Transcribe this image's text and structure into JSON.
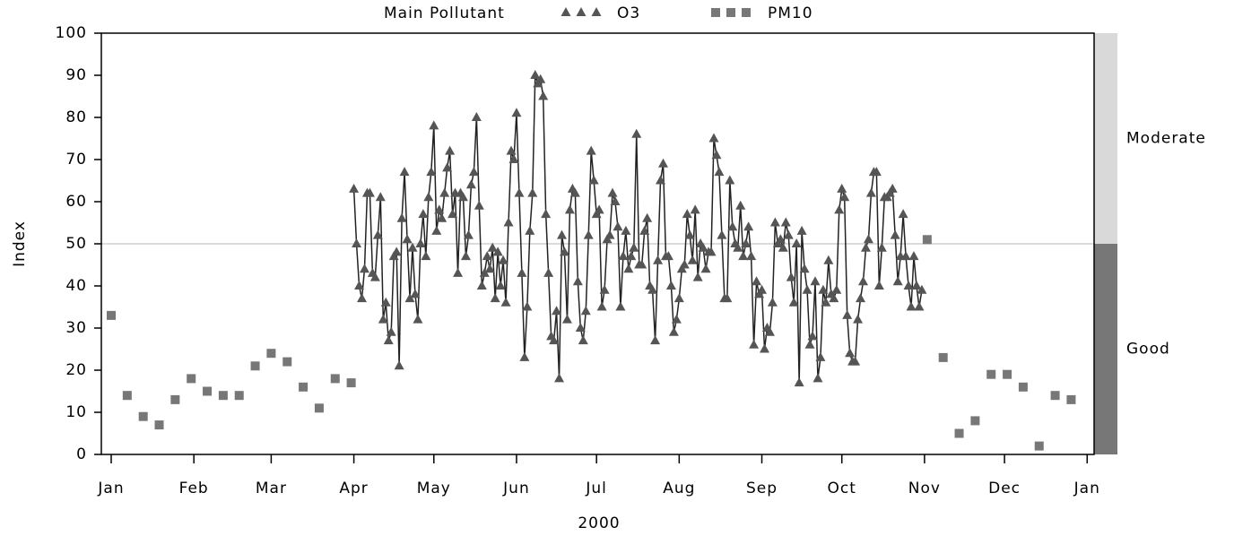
{
  "chart_data": {
    "type": "line",
    "title": "Main Pollutant",
    "xlabel": "2000",
    "ylabel": "Index",
    "xlim": [
      -3.7,
      368.6
    ],
    "ylim": [
      0,
      100
    ],
    "xticks": [
      {
        "value": 0,
        "label": "Jan"
      },
      {
        "value": 31,
        "label": "Feb"
      },
      {
        "value": 60,
        "label": "Mar"
      },
      {
        "value": 91,
        "label": "Apr"
      },
      {
        "value": 121,
        "label": "May"
      },
      {
        "value": 152,
        "label": "Jun"
      },
      {
        "value": 182,
        "label": "Jul"
      },
      {
        "value": 213,
        "label": "Aug"
      },
      {
        "value": 244,
        "label": "Sep"
      },
      {
        "value": 274,
        "label": "Oct"
      },
      {
        "value": 305,
        "label": "Nov"
      },
      {
        "value": 335,
        "label": "Dec"
      },
      {
        "value": 366,
        "label": "Jan"
      }
    ],
    "yticks": [
      0,
      10,
      20,
      30,
      40,
      50,
      60,
      70,
      80,
      90,
      100
    ],
    "bands": [
      {
        "label": "Good",
        "from": 0,
        "to": 50,
        "color": "#777777"
      },
      {
        "label": "Moderate",
        "from": 50,
        "to": 100,
        "color": "#d9d9d9"
      }
    ],
    "series": [
      {
        "name": "O3",
        "color": "#555555",
        "marker": "triangle",
        "line": true,
        "x": [
          91,
          92,
          93,
          94,
          95,
          96,
          97,
          98,
          99,
          100,
          101,
          102,
          103,
          104,
          105,
          106,
          107,
          108,
          109,
          110,
          111,
          112,
          113,
          114,
          115,
          116,
          117,
          118,
          119,
          120,
          121,
          122,
          123,
          124,
          125,
          126,
          127,
          128,
          129,
          130,
          131,
          132,
          133,
          134,
          135,
          136,
          137,
          138,
          139,
          140,
          141,
          142,
          143,
          144,
          145,
          146,
          147,
          148,
          149,
          150,
          151,
          152,
          153,
          154,
          155,
          156,
          157,
          158,
          159,
          160,
          161,
          162,
          163,
          164,
          165,
          166,
          167,
          168,
          169,
          170,
          171,
          172,
          173,
          174,
          175,
          176,
          177,
          178,
          179,
          180,
          181,
          182,
          183,
          184,
          185,
          186,
          187,
          188,
          189,
          190,
          191,
          192,
          193,
          194,
          195,
          196,
          197,
          198,
          199,
          200,
          201,
          202,
          203,
          204,
          205,
          206,
          207,
          208,
          209,
          210,
          211,
          212,
          213,
          214,
          215,
          216,
          217,
          218,
          219,
          220,
          221,
          222,
          223,
          224,
          225,
          226,
          227,
          228,
          229,
          230,
          231,
          232,
          233,
          234,
          235,
          236,
          237,
          238,
          239,
          240,
          241,
          242,
          243,
          244,
          245,
          246,
          247,
          248,
          249,
          250,
          251,
          252,
          253,
          254,
          255,
          256,
          257,
          258,
          259,
          260,
          261,
          262,
          263,
          264,
          265,
          266,
          267,
          268,
          269,
          270,
          271,
          272,
          273,
          274,
          275,
          276,
          277,
          278,
          279,
          280,
          281,
          282,
          283,
          284,
          285,
          286,
          287,
          288,
          289,
          290,
          291,
          292,
          293,
          294,
          295,
          296,
          297,
          298,
          299,
          300,
          301,
          302,
          303,
          304
        ],
        "values": [
          63,
          50,
          40,
          37,
          44,
          62,
          62,
          43,
          42,
          52,
          61,
          32,
          36,
          27,
          29,
          47,
          48,
          21,
          56,
          67,
          51,
          37,
          49,
          38,
          32,
          50,
          57,
          47,
          61,
          67,
          78,
          53,
          58,
          56,
          62,
          68,
          72,
          57,
          62,
          43,
          62,
          61,
          47,
          52,
          64,
          67,
          80,
          59,
          40,
          43,
          47,
          44,
          49,
          37,
          48,
          40,
          46,
          36,
          55,
          72,
          70,
          81,
          62,
          43,
          23,
          35,
          53,
          62,
          90,
          88,
          89,
          85,
          57,
          43,
          28,
          27,
          34,
          18,
          52,
          48,
          32,
          58,
          63,
          62,
          41,
          30,
          27,
          34,
          52,
          72,
          65,
          57,
          58,
          35,
          39,
          51,
          52,
          62,
          60,
          54,
          35,
          47,
          53,
          44,
          47,
          49,
          76,
          45,
          45,
          53,
          56,
          40,
          39,
          27,
          46,
          65,
          69,
          47,
          47,
          40,
          29,
          32,
          37,
          44,
          45,
          57,
          52,
          46,
          58,
          42,
          50,
          49,
          44,
          48,
          48,
          75,
          71,
          67,
          52,
          37,
          37,
          65,
          54,
          50,
          49,
          59,
          47,
          50,
          54,
          47,
          26,
          41,
          38,
          39,
          25,
          30,
          29,
          36,
          55,
          50,
          51,
          49,
          55,
          52,
          42,
          36,
          50,
          17,
          53,
          44,
          39,
          26,
          28,
          41,
          18,
          23,
          39,
          36,
          46,
          38,
          37,
          39,
          58,
          63,
          61,
          33,
          24,
          22,
          22,
          32,
          37,
          41,
          49,
          51,
          62,
          67,
          67,
          40,
          49,
          61,
          61,
          62,
          63,
          52,
          41,
          47,
          57,
          47,
          40,
          35,
          47,
          40,
          35,
          39
        ]
      },
      {
        "name": "PM10",
        "color": "#777777",
        "marker": "square",
        "line": false,
        "x": [
          0,
          6,
          12,
          18,
          24,
          30,
          36,
          42,
          48,
          54,
          60,
          66,
          72,
          78,
          84,
          90,
          306,
          312,
          318,
          324,
          330,
          336,
          342,
          348,
          354,
          360
        ],
        "values": [
          33,
          14,
          9,
          7,
          13,
          18,
          15,
          14,
          14,
          21,
          24,
          22,
          16,
          11,
          18,
          17,
          51,
          23,
          5,
          8,
          19,
          19,
          16,
          2,
          14,
          13
        ]
      }
    ]
  }
}
